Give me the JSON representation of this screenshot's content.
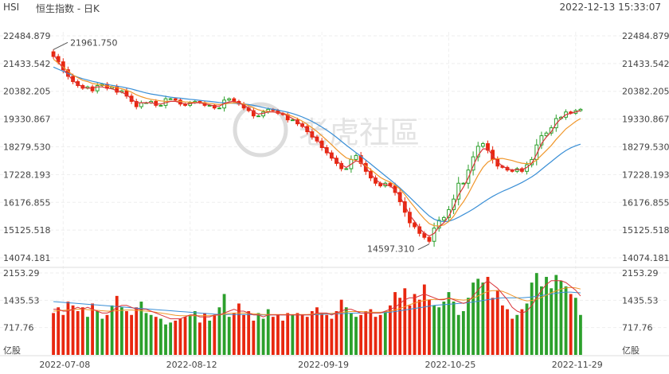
{
  "header": {
    "ticker": "HSI",
    "subtitle": "恒生指数 - 日K",
    "timestamp": "2022-12-13 15:33:07"
  },
  "watermark": "老虎社區",
  "chart_data": [
    {
      "type": "candlestick",
      "title": "",
      "y_tick_labels": [
        "22484.879",
        "21433.542",
        "20382.205",
        "19330.867",
        "18279.530",
        "17228.193",
        "16176.855",
        "15125.518",
        "14074.181"
      ],
      "ylim": [
        14074.181,
        22484.879
      ],
      "x_tick_labels": [
        "2022-07-08",
        "2022-08-12",
        "2022-09-19",
        "2022-10-25",
        "2022-11-29"
      ],
      "annotations": [
        {
          "text": "21961.750",
          "type": "high"
        },
        {
          "text": "14597.310",
          "type": "low"
        }
      ],
      "colors": {
        "up": "#2ca02c",
        "down": "#e8270f",
        "ma1": "#d9343a",
        "ma2": "#f0962a",
        "ma3": "#3a8fd6"
      },
      "series": [
        {
          "id": "close",
          "values": [
            21700,
            21500,
            21200,
            20950,
            20750,
            20600,
            20500,
            20550,
            20400,
            20600,
            20650,
            20500,
            20550,
            20350,
            20400,
            20200,
            20000,
            19800,
            19950,
            19950,
            20000,
            19850,
            19850,
            20100,
            20100,
            20050,
            19900,
            19850,
            19950,
            20000,
            19950,
            19850,
            19850,
            19750,
            19750,
            20050,
            20100,
            20000,
            19900,
            19750,
            19650,
            19450,
            19450,
            19600,
            19700,
            19650,
            19550,
            19500,
            19300,
            19300,
            19150,
            19050,
            18850,
            18650,
            18500,
            18250,
            18050,
            17850,
            17650,
            17450,
            17450,
            17800,
            17950,
            17650,
            17350,
            17100,
            16900,
            16800,
            16900,
            16800,
            16550,
            16200,
            15800,
            15400,
            15250,
            15000,
            14850,
            14700,
            15200,
            15500,
            15600,
            15900,
            16300,
            16900,
            16900,
            17400,
            17900,
            18300,
            18400,
            18150,
            17800,
            17550,
            17500,
            17400,
            17350,
            17450,
            17350,
            17600,
            17800,
            18350,
            18700,
            18800,
            19000,
            19350,
            19400,
            19600,
            19550,
            19650,
            19700
          ]
        },
        {
          "id": "ma1",
          "values": [
            21800,
            21500,
            21250,
            21000,
            20800,
            20650,
            20550,
            20500,
            20500,
            20550,
            20550,
            20500,
            20480,
            20400,
            20350,
            20250,
            20100,
            19950,
            19950,
            19950,
            19950,
            19900,
            19900,
            19950,
            20000,
            20000,
            19950,
            19900,
            19920,
            19950,
            19950,
            19900,
            19870,
            19820,
            19820,
            19920,
            19980,
            20000,
            19950,
            19850,
            19750,
            19600,
            19520,
            19550,
            19600,
            19600,
            19580,
            19550,
            19450,
            19350,
            19250,
            19100,
            18950,
            18750,
            18550,
            18350,
            18150,
            17950,
            17750,
            17600,
            17500,
            17620,
            17750,
            17700,
            17500,
            17250,
            17050,
            16900,
            16850,
            16800,
            16650,
            16400,
            16050,
            15700,
            15450,
            15200,
            15000,
            14900,
            15000,
            15250,
            15400,
            15650,
            16000,
            16450,
            16750,
            17100,
            17550,
            17950,
            18200,
            18200,
            17950,
            17700,
            17550,
            17450,
            17400,
            17420,
            17400,
            17500,
            17650,
            18000,
            18400,
            18650,
            18850,
            19150,
            19350,
            19500,
            19550,
            19600,
            19650
          ]
        },
        {
          "id": "ma2",
          "values": [
            21600,
            21450,
            21300,
            21150,
            21000,
            20900,
            20800,
            20750,
            20680,
            20650,
            20620,
            20580,
            20560,
            20520,
            20480,
            20420,
            20350,
            20250,
            20180,
            20120,
            20080,
            20050,
            20020,
            20000,
            20000,
            20000,
            20000,
            19980,
            19970,
            19960,
            19960,
            19950,
            19930,
            19900,
            19880,
            19900,
            19930,
            19950,
            19940,
            19900,
            19840,
            19760,
            19680,
            19640,
            19620,
            19600,
            19580,
            19550,
            19500,
            19430,
            19350,
            19250,
            19130,
            19000,
            18860,
            18700,
            18530,
            18360,
            18180,
            18010,
            17860,
            17800,
            17760,
            17680,
            17560,
            17420,
            17270,
            17120,
            17020,
            16940,
            16830,
            16680,
            16470,
            16220,
            15990,
            15760,
            15550,
            15370,
            15290,
            15280,
            15320,
            15450,
            15650,
            15950,
            16200,
            16500,
            16850,
            17200,
            17500,
            17700,
            17800,
            17830,
            17840,
            17800,
            17760,
            17700,
            17660,
            17640,
            17660,
            17780,
            17960,
            18140,
            18330,
            18560,
            18760,
            18960,
            19100,
            19240,
            19350
          ]
        },
        {
          "id": "ma3",
          "values": [
            21300,
            21220,
            21140,
            21060,
            20990,
            20920,
            20860,
            20810,
            20760,
            20720,
            20680,
            20640,
            20610,
            20580,
            20550,
            20510,
            20470,
            20420,
            20370,
            20320,
            20280,
            20250,
            20220,
            20190,
            20160,
            20140,
            20120,
            20100,
            20080,
            20060,
            20040,
            20020,
            20000,
            19980,
            19960,
            19950,
            19940,
            19930,
            19920,
            19900,
            19880,
            19850,
            19810,
            19770,
            19730,
            19700,
            19670,
            19630,
            19590,
            19540,
            19480,
            19410,
            19330,
            19240,
            19140,
            19030,
            18910,
            18780,
            18640,
            18490,
            18340,
            18200,
            18060,
            17920,
            17780,
            17630,
            17480,
            17330,
            17180,
            17030,
            16880,
            16720,
            16550,
            16370,
            16190,
            16010,
            15830,
            15660,
            15540,
            15470,
            15440,
            15460,
            15520,
            15610,
            15710,
            15810,
            15920,
            16040,
            16170,
            16290,
            16400,
            16500,
            16590,
            16670,
            16750,
            16840,
            16930,
            17030,
            17140,
            17270,
            17420,
            17570,
            17720,
            17870,
            18010,
            18140,
            18240,
            18320,
            18380
          ]
        },
        {
          "id": "volume",
          "axis_tick_labels": [
            "2153.29",
            "1435.53",
            "717.76"
          ],
          "unit": "亿股",
          "ylim": [
            0,
            2153.29
          ],
          "values": [
            1100,
            1250,
            1050,
            1400,
            1300,
            1150,
            1250,
            1000,
            1350,
            1150,
            950,
            1050,
            1300,
            1550,
            1250,
            1150,
            1050,
            1250,
            1400,
            1100,
            1050,
            1000,
            950,
            800,
            850,
            900,
            950,
            1000,
            1050,
            1150,
            850,
            1100,
            900,
            1050,
            1250,
            1600,
            1000,
            1100,
            1350,
            1050,
            1150,
            900,
            1100,
            950,
            1200,
            1000,
            1050,
            900,
            1100,
            1050,
            1100,
            1050,
            1000,
            1150,
            1250,
            1100,
            1050,
            950,
            1150,
            1450,
            1250,
            1100,
            1000,
            1050,
            1150,
            1200,
            1000,
            1050,
            1150,
            1300,
            1650,
            1500,
            1750,
            1300,
            1600,
            1450,
            1850,
            1450,
            1300,
            1250,
            1400,
            1650,
            1400,
            1050,
            1150,
            1500,
            1900,
            2000,
            1900,
            2050,
            1500,
            1700,
            1300,
            1200,
            950,
            1050,
            1200,
            1350,
            1900,
            2150,
            1800,
            2050,
            1750,
            2100,
            1950,
            1800,
            1600,
            1500,
            1050
          ]
        },
        {
          "id": "vol_ma1",
          "values": [
            1200,
            1200,
            1150,
            1150,
            1200,
            1250,
            1200,
            1250,
            1200,
            1150,
            1100,
            1100,
            1150,
            1250,
            1300,
            1300,
            1250,
            1200,
            1200,
            1200,
            1150,
            1100,
            1050,
            1000,
            950,
            950,
            950,
            1000,
            1050,
            1050,
            1000,
            1000,
            1000,
            1050,
            1050,
            1100,
            1150,
            1200,
            1150,
            1150,
            1100,
            1050,
            1050,
            1000,
            1050,
            1050,
            1050,
            1050,
            1050,
            1050,
            1050,
            1050,
            1050,
            1050,
            1100,
            1100,
            1100,
            1050,
            1100,
            1150,
            1200,
            1200,
            1150,
            1100,
            1100,
            1100,
            1100,
            1100,
            1150,
            1200,
            1250,
            1350,
            1450,
            1500,
            1500,
            1550,
            1600,
            1550,
            1500,
            1450,
            1450,
            1500,
            1450,
            1400,
            1350,
            1400,
            1550,
            1700,
            1850,
            1950,
            1850,
            1750,
            1600,
            1450,
            1250,
            1150,
            1100,
            1150,
            1300,
            1500,
            1700,
            1850,
            1950,
            1950,
            1950,
            1900,
            1800,
            1700,
            1550
          ]
        },
        {
          "id": "vol_ma2",
          "values": [
            1150,
            1160,
            1170,
            1180,
            1190,
            1200,
            1200,
            1190,
            1180,
            1170,
            1160,
            1150,
            1150,
            1160,
            1170,
            1180,
            1180,
            1170,
            1160,
            1150,
            1140,
            1120,
            1100,
            1080,
            1060,
            1040,
            1030,
            1030,
            1030,
            1030,
            1030,
            1030,
            1030,
            1040,
            1050,
            1070,
            1090,
            1100,
            1100,
            1100,
            1090,
            1080,
            1070,
            1060,
            1060,
            1060,
            1060,
            1060,
            1060,
            1060,
            1060,
            1060,
            1060,
            1070,
            1080,
            1090,
            1090,
            1090,
            1100,
            1110,
            1130,
            1140,
            1140,
            1140,
            1130,
            1120,
            1120,
            1120,
            1130,
            1150,
            1180,
            1220,
            1270,
            1320,
            1360,
            1400,
            1430,
            1450,
            1460,
            1460,
            1470,
            1480,
            1470,
            1450,
            1440,
            1450,
            1490,
            1550,
            1610,
            1670,
            1690,
            1690,
            1670,
            1620,
            1560,
            1500,
            1450,
            1420,
            1430,
            1460,
            1510,
            1570,
            1630,
            1680,
            1730,
            1760,
            1770,
            1760,
            1730
          ]
        },
        {
          "id": "vol_ma3",
          "values": [
            1400,
            1390,
            1380,
            1370,
            1360,
            1350,
            1340,
            1330,
            1320,
            1310,
            1300,
            1290,
            1280,
            1270,
            1260,
            1250,
            1240,
            1230,
            1220,
            1210,
            1200,
            1190,
            1180,
            1170,
            1160,
            1150,
            1140,
            1130,
            1120,
            1110,
            1100,
            1090,
            1080,
            1070,
            1065,
            1060,
            1060,
            1060,
            1060,
            1060,
            1060,
            1055,
            1050,
            1050,
            1050,
            1050,
            1050,
            1050,
            1050,
            1050,
            1050,
            1050,
            1050,
            1055,
            1060,
            1065,
            1070,
            1075,
            1080,
            1085,
            1090,
            1095,
            1100,
            1100,
            1100,
            1100,
            1100,
            1105,
            1110,
            1120,
            1140,
            1160,
            1180,
            1200,
            1220,
            1240,
            1260,
            1280,
            1300,
            1310,
            1320,
            1330,
            1340,
            1350,
            1360,
            1370,
            1390,
            1410,
            1430,
            1450,
            1470,
            1490,
            1500,
            1500,
            1500,
            1500,
            1500,
            1510,
            1520,
            1540,
            1560,
            1580,
            1600,
            1620,
            1640,
            1650,
            1650,
            1640,
            1630
          ]
        }
      ]
    }
  ]
}
